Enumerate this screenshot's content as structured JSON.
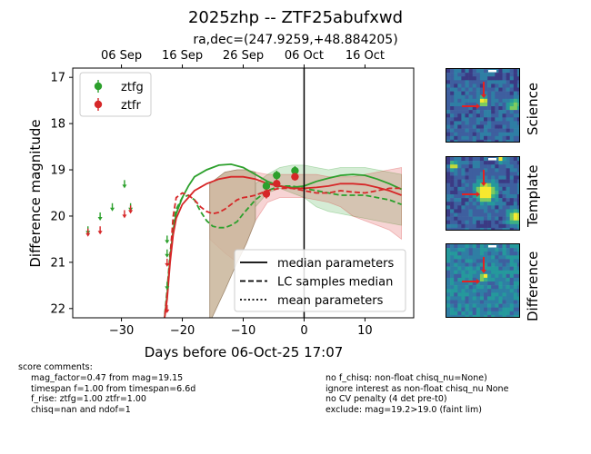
{
  "header": {
    "title": "2025zhp -- ZTF25abufxwd",
    "subtitle": "ra,dec=(247.9259,+48.884205)"
  },
  "chart_data": {
    "type": "scatter",
    "xlabel": "Days before 06-Oct-25 17:07",
    "ylabel": "Difference magnitude",
    "xlim": [
      -38,
      18
    ],
    "ylim": [
      22.2,
      16.8
    ],
    "y_inverted": true,
    "x_ticks": [
      -30,
      -20,
      -10,
      0,
      10
    ],
    "y_ticks": [
      17,
      18,
      19,
      20,
      21,
      22
    ],
    "top_axis_ticks": [
      {
        "label": "06 Sep",
        "x": -30
      },
      {
        "label": "16 Sep",
        "x": -20
      },
      {
        "label": "26 Sep",
        "x": -10
      },
      {
        "label": "06 Oct",
        "x": 0
      },
      {
        "label": "16 Oct",
        "x": 10
      }
    ],
    "reference_line_x": 0,
    "grid": false,
    "legend_top": {
      "placement": "top-left",
      "entries": [
        "ztfg",
        "ztfr"
      ]
    },
    "legend_bottom": {
      "placement": "bottom-right",
      "entries": [
        "median parameters",
        "LC samples median",
        "mean parameters"
      ]
    },
    "series": [
      {
        "name": "ztfg",
        "color": "#2ca02c",
        "detections": [
          {
            "x": -6.2,
            "y": 19.35,
            "err": 0.1
          },
          {
            "x": -4.5,
            "y": 19.12,
            "err": 0.1
          },
          {
            "x": -1.5,
            "y": 19.02,
            "err": 0.1
          }
        ],
        "upper_limits": [
          {
            "x": -35.5,
            "y": 20.3
          },
          {
            "x": -33.5,
            "y": 20.0
          },
          {
            "x": -31.5,
            "y": 19.8
          },
          {
            "x": -29.5,
            "y": 19.3
          },
          {
            "x": -28.5,
            "y": 19.8
          },
          {
            "x": -22.5,
            "y": 20.8
          },
          {
            "x": -22.5,
            "y": 20.5
          },
          {
            "x": -22.5,
            "y": 21.5
          }
        ],
        "median_curve": [
          [
            -23,
            22.3
          ],
          [
            -22.5,
            21.7
          ],
          [
            -22,
            20.9
          ],
          [
            -21.5,
            20.3
          ],
          [
            -21,
            19.95
          ],
          [
            -20,
            19.6
          ],
          [
            -19,
            19.35
          ],
          [
            -18,
            19.15
          ],
          [
            -16,
            19.0
          ],
          [
            -14,
            18.9
          ],
          [
            -12,
            18.88
          ],
          [
            -10,
            18.95
          ],
          [
            -8,
            19.1
          ],
          [
            -6,
            19.25
          ],
          [
            -4,
            19.35
          ],
          [
            -2,
            19.38
          ],
          [
            0,
            19.35
          ],
          [
            2,
            19.25
          ],
          [
            4,
            19.18
          ],
          [
            6,
            19.12
          ],
          [
            8,
            19.1
          ],
          [
            10,
            19.12
          ],
          [
            12,
            19.2
          ],
          [
            14,
            19.3
          ],
          [
            16,
            19.42
          ]
        ],
        "samples_median_curve": [
          [
            -23,
            22.3
          ],
          [
            -22.5,
            21.6
          ],
          [
            -22,
            20.8
          ],
          [
            -21.5,
            20.2
          ],
          [
            -21,
            19.85
          ],
          [
            -20,
            19.6
          ],
          [
            -19,
            19.55
          ],
          [
            -18,
            19.65
          ],
          [
            -17,
            19.9
          ],
          [
            -16,
            20.1
          ],
          [
            -15,
            20.22
          ],
          [
            -14,
            20.25
          ],
          [
            -13,
            20.25
          ],
          [
            -12,
            20.2
          ],
          [
            -11,
            20.12
          ],
          [
            -10,
            19.95
          ],
          [
            -9,
            19.8
          ],
          [
            -8,
            19.65
          ],
          [
            -7,
            19.55
          ],
          [
            -6,
            19.45
          ],
          [
            -4,
            19.35
          ],
          [
            -2,
            19.35
          ],
          [
            0,
            19.4
          ],
          [
            2,
            19.45
          ],
          [
            4,
            19.5
          ],
          [
            6,
            19.55
          ],
          [
            8,
            19.55
          ],
          [
            10,
            19.55
          ],
          [
            12,
            19.6
          ],
          [
            14,
            19.65
          ],
          [
            16,
            19.75
          ]
        ],
        "band_upper": [
          [
            -8,
            19.8
          ],
          [
            -6,
            19.5
          ],
          [
            -4,
            19.4
          ],
          [
            -2,
            19.5
          ],
          [
            0,
            19.6
          ],
          [
            2,
            19.8
          ],
          [
            4,
            19.9
          ],
          [
            6,
            19.95
          ],
          [
            8,
            20.0
          ],
          [
            10,
            20.05
          ],
          [
            12,
            20.1
          ],
          [
            14,
            20.15
          ],
          [
            16,
            20.2
          ]
        ],
        "band_lower": [
          [
            -8,
            19.3
          ],
          [
            -6,
            19.1
          ],
          [
            -4,
            18.95
          ],
          [
            -2,
            18.9
          ],
          [
            0,
            18.9
          ],
          [
            2,
            18.95
          ],
          [
            4,
            19.0
          ],
          [
            6,
            18.95
          ],
          [
            8,
            18.95
          ],
          [
            10,
            18.95
          ],
          [
            12,
            19.0
          ],
          [
            14,
            19.05
          ],
          [
            16,
            19.1
          ]
        ]
      },
      {
        "name": "ztfr",
        "color": "#d62728",
        "detections": [
          {
            "x": -6.2,
            "y": 19.52,
            "err": 0.1
          },
          {
            "x": -4.5,
            "y": 19.3,
            "err": 0.08
          },
          {
            "x": -1.5,
            "y": 19.15,
            "err": 0.08
          }
        ],
        "upper_limits": [
          {
            "x": -35.5,
            "y": 20.35
          },
          {
            "x": -33.5,
            "y": 20.3
          },
          {
            "x": -29.5,
            "y": 19.95
          },
          {
            "x": -28.5,
            "y": 19.85
          },
          {
            "x": -22.5,
            "y": 21.0
          },
          {
            "x": -22.5,
            "y": 22.0
          }
        ],
        "median_curve": [
          [
            -23,
            22.3
          ],
          [
            -22.5,
            21.8
          ],
          [
            -22,
            21.0
          ],
          [
            -21.5,
            20.4
          ],
          [
            -21,
            20.05
          ],
          [
            -20,
            19.75
          ],
          [
            -19,
            19.6
          ],
          [
            -18,
            19.45
          ],
          [
            -16,
            19.3
          ],
          [
            -14,
            19.2
          ],
          [
            -12,
            19.15
          ],
          [
            -10,
            19.15
          ],
          [
            -8,
            19.2
          ],
          [
            -6,
            19.3
          ],
          [
            -4,
            19.35
          ],
          [
            -2,
            19.4
          ],
          [
            0,
            19.4
          ],
          [
            2,
            19.38
          ],
          [
            4,
            19.35
          ],
          [
            6,
            19.3
          ],
          [
            8,
            19.3
          ],
          [
            10,
            19.32
          ],
          [
            12,
            19.38
          ],
          [
            14,
            19.45
          ],
          [
            16,
            19.55
          ]
        ],
        "samples_median_curve": [
          [
            -23,
            22.3
          ],
          [
            -22.5,
            21.7
          ],
          [
            -22,
            20.9
          ],
          [
            -21.5,
            20.0
          ],
          [
            -21,
            19.6
          ],
          [
            -20,
            19.5
          ],
          [
            -19,
            19.55
          ],
          [
            -18,
            19.65
          ],
          [
            -17,
            19.8
          ],
          [
            -16,
            19.9
          ],
          [
            -15,
            19.95
          ],
          [
            -14,
            19.92
          ],
          [
            -13,
            19.85
          ],
          [
            -12,
            19.75
          ],
          [
            -11,
            19.65
          ],
          [
            -10,
            19.6
          ],
          [
            -9,
            19.58
          ],
          [
            -8,
            19.55
          ],
          [
            -7,
            19.5
          ],
          [
            -6,
            19.45
          ],
          [
            -4,
            19.4
          ],
          [
            -2,
            19.4
          ],
          [
            0,
            19.45
          ],
          [
            2,
            19.5
          ],
          [
            4,
            19.5
          ],
          [
            6,
            19.45
          ],
          [
            8,
            19.48
          ],
          [
            10,
            19.5
          ],
          [
            12,
            19.45
          ],
          [
            14,
            19.4
          ],
          [
            16,
            19.4
          ]
        ],
        "band_upper": [
          [
            -15.5,
            20.5
          ],
          [
            -13,
            20.8
          ],
          [
            -11,
            21.0
          ],
          [
            -9.5,
            20.6
          ],
          [
            -8,
            20.1
          ],
          [
            -6,
            19.7
          ],
          [
            -4,
            19.6
          ],
          [
            -2,
            19.6
          ],
          [
            0,
            19.6
          ],
          [
            2,
            19.65
          ],
          [
            4,
            19.7
          ],
          [
            6,
            19.8
          ],
          [
            8,
            20.0
          ],
          [
            10,
            20.1
          ],
          [
            12,
            20.2
          ],
          [
            14,
            20.3
          ],
          [
            16,
            20.5
          ]
        ],
        "band_lower": [
          [
            -15.5,
            19.3
          ],
          [
            -13,
            19.05
          ],
          [
            -11,
            19.0
          ],
          [
            -9.5,
            19.0
          ],
          [
            -8,
            19.05
          ],
          [
            -6,
            19.1
          ],
          [
            -4,
            19.1
          ],
          [
            -2,
            19.1
          ],
          [
            0,
            19.1
          ],
          [
            2,
            19.1
          ],
          [
            4,
            19.15
          ],
          [
            6,
            19.15
          ],
          [
            8,
            19.15
          ],
          [
            10,
            19.1
          ],
          [
            12,
            19.05
          ],
          [
            14,
            19.0
          ],
          [
            16,
            18.95
          ]
        ]
      }
    ],
    "overlap_band": {
      "color": "#c9b59a",
      "upper": [
        [
          -15.5,
          22.3
        ],
        [
          -13,
          21.6
        ],
        [
          -11,
          21.0
        ],
        [
          -9.5,
          20.6
        ],
        [
          -8,
          20.1
        ]
      ],
      "lower": [
        [
          -15.5,
          19.3
        ],
        [
          -13,
          19.05
        ],
        [
          -11,
          19.0
        ],
        [
          -9.5,
          19.0
        ],
        [
          -8,
          19.05
        ]
      ]
    }
  },
  "thumbnails": [
    {
      "label": "Science"
    },
    {
      "label": "Template"
    },
    {
      "label": "Difference"
    }
  ],
  "score_comments": {
    "heading": "score comments:",
    "left_lines": "mag_factor=0.47 from mag=19.15\ntimespan f=1.00 from timespan=6.6d\nf_rise: ztfg=1.00 ztfr=1.00\nchisq=nan and ndof=1",
    "right_lines": "no f_chisq: non-float chisq_nu=None)\nignore interest as non-float chisq_nu None\nno CV penalty (4 det pre-t0)\nexclude: mag=19.2>19.0 (faint lim)"
  }
}
